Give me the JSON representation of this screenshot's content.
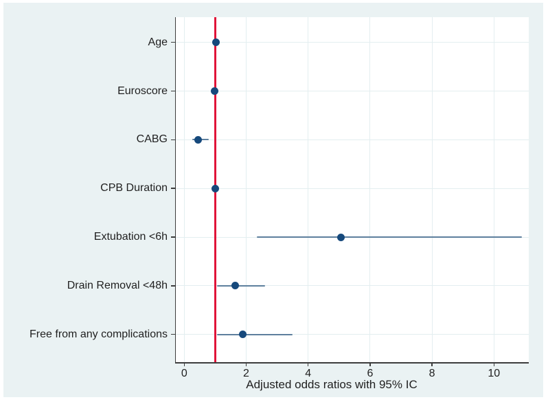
{
  "figure": {
    "background_color": "#eaf2f3",
    "plot_background_color": "#ffffff",
    "gridline_color": "#e3eef0",
    "axis_color": "#3c3c3c",
    "text_color": "#1f1f1f",
    "marker_color": "#16497c",
    "ci_line_color": "#5d7f9d",
    "reference_line_color": "#e01439"
  },
  "chart_data": {
    "type": "scatter",
    "subtype": "forest-plot",
    "title": "",
    "xlabel": "Adjusted odds ratios with 95% IC",
    "ylabel": "",
    "x_ticks": [
      0,
      2,
      4,
      6,
      8,
      10
    ],
    "xlim": [
      -0.27,
      11.15
    ],
    "reference_line_x": 1,
    "grid": true,
    "legend": "none",
    "categories": [
      "Age",
      "Euroscore",
      "CABG",
      "CPB Duration",
      "Extubation <6h",
      "Drain Removal <48h",
      "Free from any complications"
    ],
    "series": [
      {
        "name": "Adjusted odds ratio",
        "points": [
          {
            "label": "Age",
            "or": 1.03,
            "ci_low": 0.96,
            "ci_high": 1.1
          },
          {
            "label": "Euroscore",
            "or": 0.97,
            "ci_low": 0.9,
            "ci_high": 1.04
          },
          {
            "label": "CABG",
            "or": 0.45,
            "ci_low": 0.27,
            "ci_high": 0.8
          },
          {
            "label": "CPB Duration",
            "or": 1.0,
            "ci_low": 0.93,
            "ci_high": 1.07
          },
          {
            "label": "Extubation <6h",
            "or": 5.05,
            "ci_low": 2.35,
            "ci_high": 10.9
          },
          {
            "label": "Drain Removal <48h",
            "or": 1.65,
            "ci_low": 1.05,
            "ci_high": 2.6
          },
          {
            "label": "Free from any complications",
            "or": 1.9,
            "ci_low": 1.05,
            "ci_high": 3.5
          }
        ]
      }
    ]
  }
}
